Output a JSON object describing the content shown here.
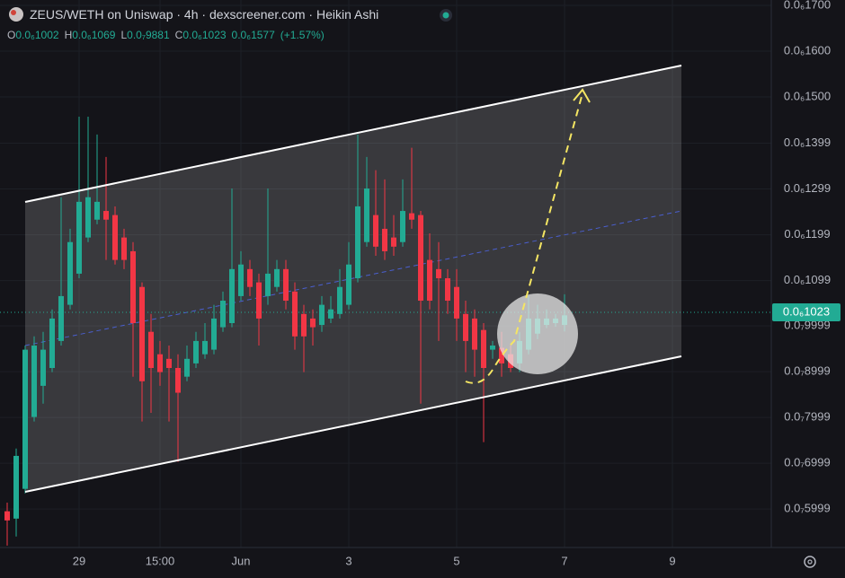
{
  "chart_data": {
    "type": "candlestick",
    "title": "ZEUS/WETH on Uniswap · 4h · dexscreener.com · Heikin Ashi",
    "ohlc_legend": [
      {
        "key": "O",
        "value": "0.0₆1002"
      },
      {
        "key": "H",
        "value": "0.0₆1069"
      },
      {
        "key": "L",
        "value": "0.0₇9881"
      },
      {
        "key": "C",
        "value": "0.0₆1023"
      }
    ],
    "change": "0.0₆1577",
    "change_percent": "(+1.57%)",
    "last_price": {
      "value": 1.023e-07,
      "label": "0.0₆1023"
    },
    "up_color": "#22ab94",
    "down_color": "#f23645",
    "grid": true,
    "open": [
      5.95e-08,
      5.79e-08,
      6.44e-08,
      8.01e-08,
      8.69e-08,
      9.08e-08,
      9.67e-08,
      1.046e-07,
      1.114e-07,
      1.193e-07,
      1.232e-07,
      1.251e-07,
      1.242e-07,
      1.193e-07,
      1.163e-07,
      1.085e-07,
      9.87e-08,
      9.38e-08,
      9.28e-08,
      9.08e-08,
      8.89e-08,
      9.18e-08,
      9.38e-08,
      9.48e-08,
      9.97e-08,
      1.006e-07,
      1.065e-07,
      1.124e-07,
      1.095e-07,
      1.065e-07,
      1.085e-07,
      1.124e-07,
      1.075e-07,
      1.026e-07,
      1.016e-07,
      1.002e-07,
      1.016e-07,
      1.026e-07,
      1.046e-07,
      1.104e-07,
      1.183e-07,
      1.242e-07,
      1.212e-07,
      1.193e-07,
      1.183e-07,
      1.246e-07,
      1.242e-07,
      1.144e-07,
      1.124e-07,
      1.104e-07,
      1.085e-07,
      1.026e-07,
      1.016e-07,
      9.91e-08,
      9.48e-08,
      9.52e-08,
      9.38e-08,
      9.18e-08,
      9.48e-08,
      9.83e-08,
      1.002e-07,
      1.006e-07,
      1.002e-07
    ],
    "high": [
      6.14e-08,
      7.32e-08,
      9.57e-08,
      9.77e-08,
      9.87e-08,
      1.036e-07,
      1.281e-07,
      1.212e-07,
      1.457e-07,
      1.457e-07,
      1.418e-07,
      1.369e-07,
      1.261e-07,
      1.212e-07,
      1.183e-07,
      1.095e-07,
      1.026e-07,
      9.67e-08,
      9.57e-08,
      9.38e-08,
      9.57e-08,
      9.87e-08,
      1.006e-07,
      1.046e-07,
      1.075e-07,
      1.3e-07,
      1.163e-07,
      1.144e-07,
      1.114e-07,
      1.3e-07,
      1.144e-07,
      1.144e-07,
      1.095e-07,
      1.046e-07,
      1.036e-07,
      1.065e-07,
      1.065e-07,
      1.124e-07,
      1.183e-07,
      1.418e-07,
      1.369e-07,
      1.34e-07,
      1.32e-07,
      1.242e-07,
      1.32e-07,
      1.389e-07,
      1.251e-07,
      1.202e-07,
      1.183e-07,
      1.124e-07,
      1.124e-07,
      1.055e-07,
      1.036e-07,
      1.006e-07,
      9.67e-08,
      9.87e-08,
      9.57e-08,
      9.87e-08,
      1.065e-07,
      1.046e-07,
      1.036e-07,
      1.026e-07,
      1.069e-07
    ],
    "low": [
      5.2e-08,
      5.4e-08,
      6.34e-08,
      7.91e-08,
      8.3e-08,
      8.99e-08,
      9.57e-08,
      1.036e-07,
      1.104e-07,
      1.183e-07,
      1.222e-07,
      1.144e-07,
      1.134e-07,
      1.124e-07,
      8.89e-08,
      7.91e-08,
      8.1e-08,
      8.69e-08,
      7.91e-08,
      7.03e-08,
      8.79e-08,
      9.08e-08,
      9.28e-08,
      9.38e-08,
      9.87e-08,
      9.97e-08,
      1.055e-07,
      1.065e-07,
      9.57e-08,
      1.046e-07,
      1.075e-07,
      1.036e-07,
      9.48e-08,
      8.99e-08,
      9.57e-08,
      9.87e-08,
      1.006e-07,
      1.016e-07,
      1.036e-07,
      1.095e-07,
      1.173e-07,
      1.153e-07,
      1.144e-07,
      1.153e-07,
      1.173e-07,
      1.212e-07,
      8.3e-08,
      1.036e-07,
      9.67e-08,
      1.026e-07,
      9.67e-08,
      8.99e-08,
      8.89e-08,
      7.46e-08,
      9.28e-08,
      8.89e-08,
      8.99e-08,
      8.99e-08,
      9.38e-08,
      9.71e-08,
      9.95e-08,
      9.98e-08,
      9.88e-08
    ],
    "close": [
      5.75e-08,
      7.16e-08,
      9.48e-08,
      9.57e-08,
      9.48e-08,
      1.016e-07,
      1.065e-07,
      1.183e-07,
      1.271e-07,
      1.281e-07,
      1.271e-07,
      1.232e-07,
      1.144e-07,
      1.144e-07,
      1.006e-07,
      8.79e-08,
      9.08e-08,
      8.99e-08,
      9.08e-08,
      8.54e-08,
      9.28e-08,
      9.67e-08,
      9.67e-08,
      1.016e-07,
      1.055e-07,
      1.124e-07,
      1.134e-07,
      1.085e-07,
      1.016e-07,
      1.114e-07,
      1.124e-07,
      1.055e-07,
      9.77e-08,
      9.77e-08,
      9.97e-08,
      1.046e-07,
      1.036e-07,
      1.085e-07,
      1.134e-07,
      1.261e-07,
      1.3e-07,
      1.173e-07,
      1.163e-07,
      1.173e-07,
      1.251e-07,
      1.232e-07,
      1.055e-07,
      1.055e-07,
      1.104e-07,
      1.055e-07,
      1.016e-07,
      9.67e-08,
      9.48e-08,
      9.08e-08,
      9.57e-08,
      9.18e-08,
      9.08e-08,
      9.67e-08,
      1.016e-07,
      1.016e-07,
      1.016e-07,
      1.016e-07,
      1.023e-07
    ],
    "ylim": [
      5.159e-08,
      1.7118e-07
    ],
    "yticks": [
      {
        "value": 1.7e-07,
        "label": "0.0₆1700"
      },
      {
        "value": 1.6e-07,
        "label": "0.0₆1600"
      },
      {
        "value": 1.5e-07,
        "label": "0.0₆1500"
      },
      {
        "value": 1.399e-07,
        "label": "0.0₆1399"
      },
      {
        "value": 1.299e-07,
        "label": "0.0₆1299"
      },
      {
        "value": 1.199e-07,
        "label": "0.0₆1199"
      },
      {
        "value": 1.099e-07,
        "label": "0.0₆1099"
      },
      {
        "value": 9.999e-08,
        "label": "0.0₇9999"
      },
      {
        "value": 8.999e-08,
        "label": "0.0₇8999"
      },
      {
        "value": 7.999e-08,
        "label": "0.0₇7999"
      },
      {
        "value": 6.999e-08,
        "label": "0.0₇6999"
      },
      {
        "value": 5.999e-08,
        "label": "0.0₇5999"
      }
    ],
    "xlim": [
      -0.8,
      85
    ],
    "xticks": [
      {
        "value": 8,
        "label": "29"
      },
      {
        "value": 17,
        "label": "15:00"
      },
      {
        "value": 26,
        "label": "Jun"
      },
      {
        "value": 38,
        "label": "3"
      },
      {
        "value": 50,
        "label": "5"
      },
      {
        "value": 62,
        "label": "7"
      },
      {
        "value": 74,
        "label": "9"
      }
    ]
  }
}
